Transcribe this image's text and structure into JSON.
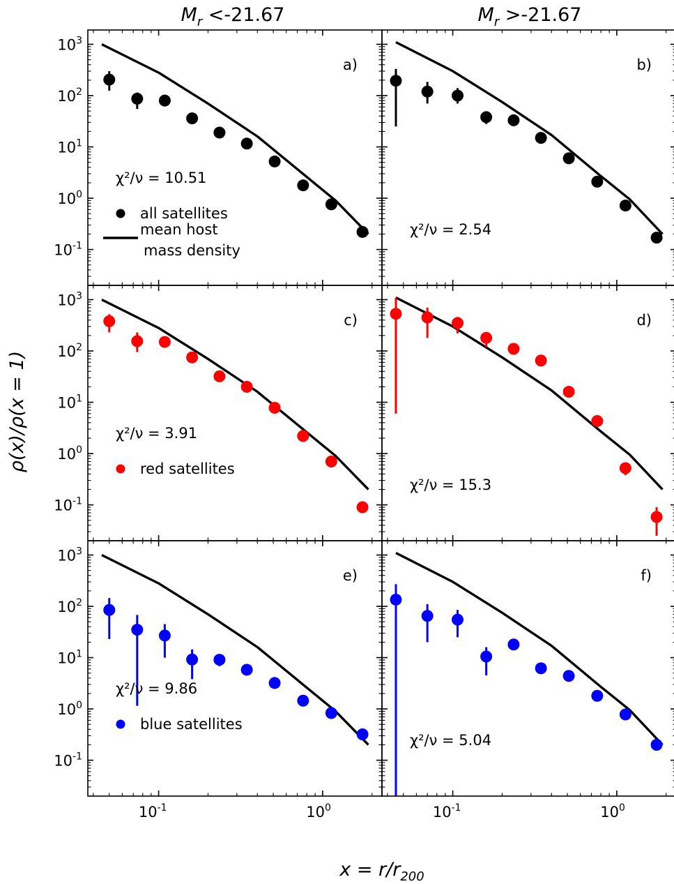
{
  "figure": {
    "col_titles": [
      {
        "label": "M",
        "sub": "r",
        "rest": " <-21.67"
      },
      {
        "label": "M",
        "sub": "r",
        "rest": " >-21.67"
      }
    ],
    "ylabel": "ρ(x)/ρ(x = 1)",
    "xlabel": {
      "main": "x = r/r",
      "sub": "200"
    }
  },
  "chart_data": [
    {
      "type": "scatter",
      "panel": "a)",
      "xscale": "log",
      "yscale": "log",
      "xlim": [
        0.037,
        2.3
      ],
      "ylim": [
        0.02,
        1900
      ],
      "chi2_label": "χ²/ν = 10.51",
      "chi2_nu": 10.51,
      "legend": [
        {
          "marker": "dot",
          "color": "#000000",
          "label": "all satellites"
        },
        {
          "marker": "line",
          "color": "#000000",
          "label": "mean host",
          "label2": "mass density"
        }
      ],
      "points": {
        "color": "#000000",
        "x": [
          0.05,
          0.074,
          0.109,
          0.16,
          0.235,
          0.345,
          0.51,
          0.76,
          1.13,
          1.75
        ],
        "y": [
          205,
          87,
          80,
          36,
          19,
          11.6,
          5.2,
          1.78,
          0.76,
          0.22
        ],
        "ylo": [
          125,
          55,
          70,
          31,
          16.5,
          10.5,
          4.7,
          1.62,
          0.68,
          0.2
        ],
        "yhi": [
          300,
          115,
          90,
          41,
          21.5,
          12.8,
          5.7,
          1.95,
          0.84,
          0.24
        ]
      },
      "model": {
        "x": [
          0.045,
          0.1,
          0.2,
          0.4,
          0.8,
          1.2,
          1.9
        ],
        "y": [
          1000,
          280,
          70,
          16,
          2.6,
          0.9,
          0.2
        ]
      }
    },
    {
      "type": "scatter",
      "panel": "b)",
      "xscale": "log",
      "yscale": "log",
      "xlim": [
        0.037,
        2.3
      ],
      "ylim": [
        0.02,
        1900
      ],
      "chi2_label": "χ²/ν = 2.54",
      "chi2_nu": 2.54,
      "legend": [],
      "points": {
        "color": "#000000",
        "x": [
          0.045,
          0.07,
          0.107,
          0.16,
          0.235,
          0.345,
          0.51,
          0.76,
          1.13,
          1.75
        ],
        "y": [
          195,
          120,
          100,
          38,
          33,
          15,
          6.0,
          2.1,
          0.72,
          0.17
        ],
        "ylo": [
          25,
          70,
          70,
          28,
          28,
          13,
          5.3,
          1.85,
          0.64,
          0.15
        ],
        "yhi": [
          330,
          185,
          140,
          48,
          38,
          17,
          6.8,
          2.4,
          0.8,
          0.19
        ]
      },
      "model": {
        "x": [
          0.045,
          0.1,
          0.2,
          0.4,
          0.8,
          1.2,
          1.9
        ],
        "y": [
          1100,
          300,
          75,
          17,
          2.7,
          0.95,
          0.2
        ]
      }
    },
    {
      "type": "scatter",
      "panel": "c)",
      "xscale": "log",
      "yscale": "log",
      "xlim": [
        0.037,
        2.3
      ],
      "ylim": [
        0.02,
        1900
      ],
      "chi2_label": "χ²/ν = 3.91",
      "chi2_nu": 3.91,
      "legend": [
        {
          "marker": "dot",
          "color": "#ff0000",
          "label": "red satellites"
        }
      ],
      "points": {
        "color": "#ff0000",
        "x": [
          0.05,
          0.074,
          0.109,
          0.16,
          0.235,
          0.345,
          0.51,
          0.76,
          1.13,
          1.75
        ],
        "y": [
          380,
          155,
          150,
          75,
          32,
          20,
          7.8,
          2.2,
          0.7,
          0.09
        ],
        "ylo": [
          230,
          95,
          130,
          65,
          28,
          18,
          7,
          2.0,
          0.62,
          0.08
        ],
        "yhi": [
          520,
          230,
          175,
          88,
          37,
          23,
          8.8,
          2.5,
          0.78,
          0.1
        ]
      },
      "model": {
        "x": [
          0.045,
          0.1,
          0.2,
          0.4,
          0.8,
          1.2,
          1.9
        ],
        "y": [
          1000,
          280,
          70,
          16,
          2.6,
          0.9,
          0.2
        ]
      }
    },
    {
      "type": "scatter",
      "panel": "d)",
      "xscale": "log",
      "yscale": "log",
      "xlim": [
        0.037,
        2.3
      ],
      "ylim": [
        0.02,
        1900
      ],
      "chi2_label": "χ²/ν = 15.3",
      "chi2_nu": 15.3,
      "legend": [],
      "points": {
        "color": "#ff0000",
        "x": [
          0.045,
          0.07,
          0.107,
          0.16,
          0.235,
          0.345,
          0.51,
          0.76,
          1.13,
          1.75
        ],
        "y": [
          530,
          450,
          350,
          180,
          110,
          65,
          16,
          4.3,
          0.52,
          0.058
        ],
        "ylo": [
          6,
          180,
          220,
          120,
          95,
          55,
          14,
          3.8,
          0.38,
          0.025
        ],
        "yhi": [
          1100,
          700,
          460,
          230,
          125,
          75,
          18,
          4.8,
          0.66,
          0.09
        ]
      },
      "model": {
        "x": [
          0.045,
          0.1,
          0.2,
          0.4,
          0.8,
          1.2,
          1.9
        ],
        "y": [
          1100,
          300,
          75,
          17,
          2.7,
          0.95,
          0.2
        ]
      }
    },
    {
      "type": "scatter",
      "panel": "e)",
      "xscale": "log",
      "yscale": "log",
      "xlim": [
        0.037,
        2.3
      ],
      "ylim": [
        0.02,
        1900
      ],
      "chi2_label": "χ²/ν = 9.86",
      "chi2_nu": 9.86,
      "legend": [
        {
          "marker": "dot",
          "color": "#0000ff",
          "label": "blue satellites"
        }
      ],
      "points": {
        "color": "#0000ff",
        "x": [
          0.05,
          0.074,
          0.109,
          0.16,
          0.235,
          0.345,
          0.51,
          0.76,
          1.13,
          1.75
        ],
        "y": [
          85,
          35,
          27,
          9.2,
          9.1,
          5.8,
          3.2,
          1.45,
          0.83,
          0.32
        ],
        "ylo": [
          23,
          1.15,
          10,
          3.8,
          6.8,
          5.2,
          2.8,
          1.3,
          0.75,
          0.28
        ],
        "yhi": [
          145,
          68,
          45,
          14.5,
          11.5,
          6.5,
          3.6,
          1.62,
          0.92,
          0.36
        ]
      },
      "model": {
        "x": [
          0.045,
          0.1,
          0.2,
          0.4,
          0.8,
          1.2,
          1.9
        ],
        "y": [
          1000,
          280,
          70,
          16,
          2.6,
          0.9,
          0.2
        ]
      }
    },
    {
      "type": "scatter",
      "panel": "f)",
      "xscale": "log",
      "yscale": "log",
      "xlim": [
        0.037,
        2.3
      ],
      "ylim": [
        0.02,
        1900
      ],
      "chi2_label": "χ²/ν = 5.04",
      "chi2_nu": 5.04,
      "legend": [],
      "points": {
        "color": "#0000ff",
        "x": [
          0.045,
          0.07,
          0.107,
          0.16,
          0.235,
          0.345,
          0.51,
          0.76,
          1.13,
          1.75
        ],
        "y": [
          135,
          65,
          55,
          10.5,
          18,
          6.2,
          4.4,
          1.8,
          0.78,
          0.2
        ],
        "ylo": [
          0.02,
          20,
          25,
          4.5,
          15,
          5.5,
          3.9,
          1.6,
          0.7,
          0.18
        ],
        "yhi": [
          270,
          110,
          85,
          16,
          22,
          7,
          5,
          2.0,
          0.87,
          0.22
        ]
      },
      "model": {
        "x": [
          0.045,
          0.1,
          0.2,
          0.4,
          0.8,
          1.2,
          1.9
        ],
        "y": [
          1100,
          300,
          75,
          17,
          2.7,
          0.95,
          0.2
        ]
      }
    }
  ]
}
